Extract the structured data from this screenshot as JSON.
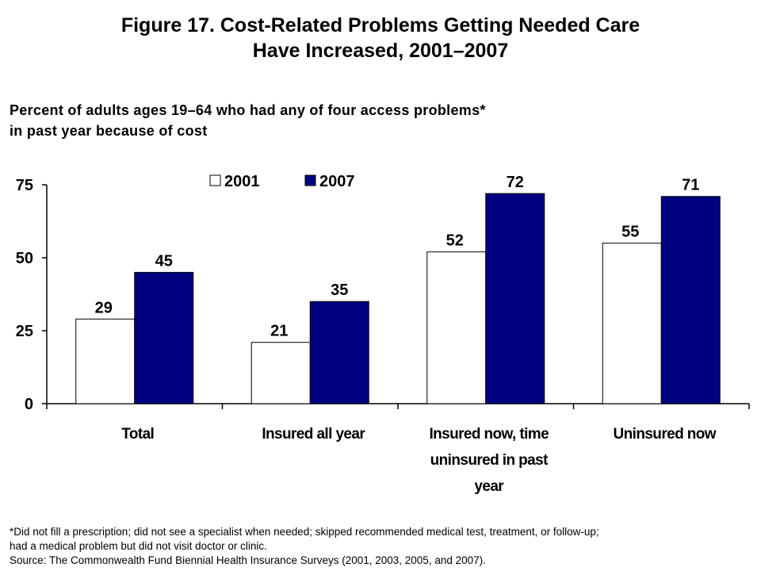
{
  "title": {
    "line1": "Figure 17. Cost-Related Problems Getting Needed Care",
    "line2": "Have Increased, 2001–2007"
  },
  "subtitle": {
    "line1": "Percent of adults ages 19–64 who had any of four access problems*",
    "line2": "in past year because of cost"
  },
  "chart_data": {
    "type": "bar",
    "categories": [
      [
        "Total"
      ],
      [
        "Insured all year"
      ],
      [
        "Insured now, time",
        "uninsured in past",
        "year"
      ],
      [
        "Uninsured now"
      ]
    ],
    "series": [
      {
        "name": "2001",
        "values": [
          29,
          21,
          52,
          55
        ],
        "fill": "#ffffff",
        "stroke": "#000000"
      },
      {
        "name": "2007",
        "values": [
          45,
          35,
          72,
          71
        ],
        "fill": "#000080",
        "stroke": "#000000"
      }
    ],
    "ylim": [
      0,
      75
    ],
    "yticks": [
      0,
      25,
      50,
      75
    ],
    "data_labels": true,
    "grid": false,
    "legend": "top-center"
  },
  "footnote": {
    "line1": "*Did not fill a prescription; did not see a specialist when needed; skipped recommended medical test, treatment, or follow-up;",
    "line2": "had a medical problem but did not visit doctor or clinic.",
    "line3": "Source: The Commonwealth Fund Biennial Health Insurance Surveys (2001, 2003, 2005, and 2007)."
  }
}
